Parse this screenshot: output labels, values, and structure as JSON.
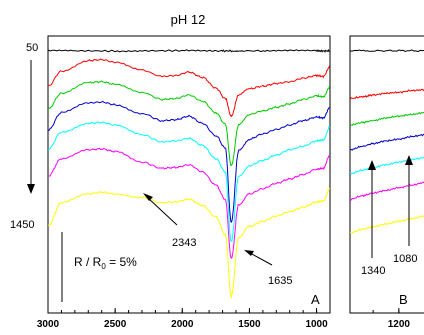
{
  "chart_data": {
    "type": "line",
    "title": "pH 12",
    "xlabel": "",
    "ylabel": "",
    "left_axis_labels": {
      "top": "50",
      "bottom": "1450"
    },
    "scale_bar_label": {
      "main": "R / R",
      "sub": "0",
      "rest": " = 5%"
    },
    "panels": [
      {
        "letter": "A",
        "xlim": [
          3000,
          900
        ],
        "xticks": [
          3000,
          2500,
          2000,
          1500,
          1000
        ],
        "xtick_labels": [
          "3000",
          "2500",
          "2000",
          "1500",
          "1000"
        ],
        "annotations": [
          {
            "text": "2343",
            "x": 2343
          },
          {
            "text": "1635",
            "x": 1635
          }
        ]
      },
      {
        "letter": "B",
        "xlim": [
          1390,
          1040
        ],
        "xticks": [
          1200
        ],
        "xtick_labels": [
          "1200"
        ],
        "annotations": [
          {
            "text": "1340",
            "x": 1340
          },
          {
            "text": "1080",
            "x": 1080
          }
        ]
      }
    ],
    "series": [
      {
        "name": "",
        "color": "#000000",
        "panelA": {
          "x": [
            3000,
            2800,
            2500,
            2300,
            2000,
            1800,
            1700,
            1635,
            1550,
            1400,
            1200,
            1000,
            950,
            900
          ],
          "y": [
            50,
            50,
            51,
            50,
            49,
            50,
            51,
            50,
            50,
            50,
            49,
            50,
            51,
            50
          ]
        },
        "panelB": {
          "x": [
            1390,
            1300,
            1200,
            1100,
            1040
          ],
          "y": [
            50,
            50,
            49,
            50,
            50
          ]
        }
      },
      {
        "name": "",
        "color": "#ff0000",
        "panelA": {
          "x": [
            3000,
            2900,
            2700,
            2600,
            2500,
            2300,
            2150,
            2050,
            1950,
            1850,
            1750,
            1680,
            1635,
            1580,
            1500,
            1400,
            1300,
            1200,
            1100,
            1000,
            950,
            900
          ],
          "y": [
            250,
            165,
            105,
            100,
            115,
            160,
            195,
            190,
            170,
            200,
            260,
            320,
            420,
            300,
            265,
            250,
            235,
            225,
            205,
            190,
            195,
            140
          ],
          "spike": 0
        },
        "panelB": {
          "x": [
            1390,
            1340,
            1300,
            1250,
            1200,
            1150,
            1100,
            1080,
            1040
          ],
          "y": [
            320,
            310,
            300,
            290,
            285,
            275,
            270,
            260,
            255
          ]
        }
      },
      {
        "name": "",
        "color": "#00cc00",
        "panelA": {
          "x": [
            3000,
            2900,
            2700,
            2600,
            2500,
            2300,
            2150,
            2050,
            1950,
            1850,
            1750,
            1680,
            1635,
            1580,
            1500,
            1400,
            1300,
            1200,
            1100,
            1000,
            950,
            900
          ],
          "y": [
            380,
            290,
            230,
            225,
            240,
            285,
            325,
            320,
            300,
            335,
            400,
            465,
            700,
            470,
            410,
            390,
            370,
            350,
            325,
            305,
            310,
            255
          ],
          "spike": 0
        },
        "panelB": {
          "x": [
            1390,
            1340,
            1300,
            1250,
            1200,
            1150,
            1100,
            1080,
            1040
          ],
          "y": [
            470,
            455,
            445,
            430,
            420,
            410,
            400,
            390,
            385
          ]
        }
      },
      {
        "name": "",
        "color": "#0000cc",
        "panelA": {
          "x": [
            3000,
            2900,
            2700,
            2600,
            2500,
            2300,
            2150,
            2050,
            1950,
            1850,
            1750,
            1680,
            1635,
            1580,
            1500,
            1400,
            1300,
            1200,
            1100,
            1000,
            950,
            900
          ],
          "y": [
            500,
            400,
            345,
            340,
            355,
            405,
            445,
            440,
            420,
            460,
            530,
            600,
            1020,
            615,
            550,
            520,
            495,
            470,
            445,
            425,
            430,
            370
          ],
          "spike": 0
        },
        "panelB": {
          "x": [
            1390,
            1340,
            1300,
            1250,
            1200,
            1150,
            1100,
            1080,
            1040
          ],
          "y": [
            610,
            590,
            575,
            560,
            550,
            535,
            525,
            510,
            505
          ]
        }
      },
      {
        "name": "",
        "color": "#00ffff",
        "panelA": {
          "x": [
            3000,
            2900,
            2700,
            2600,
            2500,
            2300,
            2150,
            2050,
            1950,
            1850,
            1750,
            1680,
            1635,
            1580,
            1500,
            1400,
            1300,
            1200,
            1100,
            1000,
            950,
            900
          ],
          "y": [
            610,
            510,
            460,
            455,
            470,
            525,
            565,
            560,
            545,
            585,
            660,
            735,
            1130,
            760,
            700,
            670,
            640,
            610,
            590,
            560,
            555,
            480
          ],
          "spike": 30
        },
        "panelB": {
          "x": [
            1390,
            1340,
            1300,
            1250,
            1200,
            1150,
            1100,
            1080,
            1040
          ],
          "y": [
            745,
            725,
            710,
            695,
            680,
            665,
            655,
            640,
            635
          ]
        }
      },
      {
        "name": "",
        "color": "#ff00ff",
        "panelA": {
          "x": [
            3000,
            2900,
            2700,
            2600,
            2500,
            2300,
            2150,
            2050,
            1950,
            1850,
            1750,
            1680,
            1635,
            1580,
            1500,
            1400,
            1300,
            1200,
            1100,
            1000,
            950,
            900
          ],
          "y": [
            760,
            660,
            610,
            605,
            620,
            680,
            715,
            710,
            695,
            735,
            810,
            890,
            1225,
            920,
            860,
            830,
            800,
            775,
            750,
            720,
            715,
            640
          ],
          "spike": 200
        },
        "panelB": {
          "x": [
            1390,
            1340,
            1300,
            1250,
            1200,
            1150,
            1100,
            1080,
            1040
          ],
          "y": [
            890,
            870,
            855,
            840,
            825,
            810,
            795,
            780,
            775
          ]
        }
      },
      {
        "name": "",
        "color": "#ffff00",
        "panelA": {
          "x": [
            3000,
            2900,
            2700,
            2600,
            2500,
            2300,
            2150,
            2050,
            1950,
            1850,
            1750,
            1680,
            1635,
            1580,
            1500,
            1400,
            1300,
            1200,
            1100,
            1000,
            950,
            900
          ],
          "y": [
            1040,
            910,
            860,
            850,
            860,
            880,
            910,
            905,
            890,
            925,
            990,
            1090,
            1440,
            1105,
            1045,
            1015,
            985,
            960,
            935,
            905,
            900,
            830
          ],
          "spike": 190
        },
        "panelB": {
          "x": [
            1390,
            1340,
            1300,
            1250,
            1200,
            1150,
            1100,
            1080,
            1040
          ],
          "y": [
            1080,
            1060,
            1045,
            1030,
            1015,
            1000,
            985,
            970,
            965
          ]
        }
      }
    ]
  }
}
